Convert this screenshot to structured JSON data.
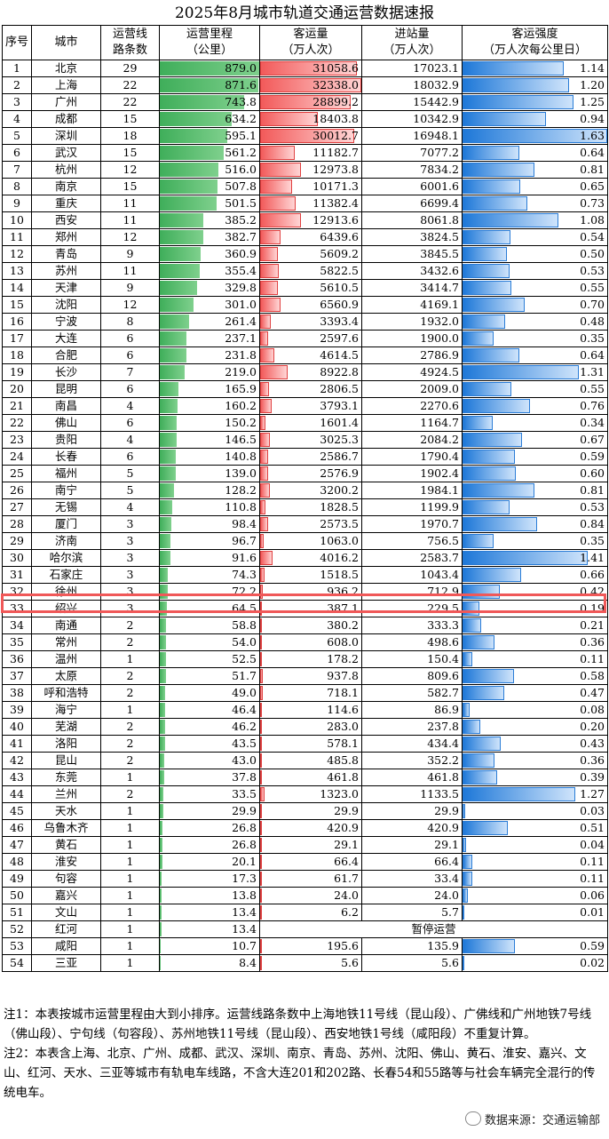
{
  "title": "2025年8月城市轨道交通运营数据速报",
  "headers": {
    "no": "序号",
    "city": "城市",
    "lines": [
      "运营线",
      "路条数"
    ],
    "mileage": [
      "运营里程",
      "（公里）"
    ],
    "ridership": [
      "客运量",
      "（万人次）"
    ],
    "entries": [
      "进站量",
      "（万人次）"
    ],
    "intensity": [
      "客运强度",
      "（万人次每公里日）"
    ]
  },
  "bar_colors": {
    "mileage": "#3fae5a",
    "ridership": "#f25a5a",
    "intensity": "#1e78d8"
  },
  "bar_scale": {
    "mileage_max": 879.0,
    "ridership_max": 32338.0,
    "intensity_max": 1.63
  },
  "rows": [
    {
      "no": "1",
      "city": "北京",
      "lines": "29",
      "mileage": "879.0",
      "ridership": "31058.6",
      "entries": "17023.1",
      "intensity": "1.14"
    },
    {
      "no": "2",
      "city": "上海",
      "lines": "22",
      "mileage": "871.6",
      "ridership": "32338.0",
      "entries": "18032.9",
      "intensity": "1.20"
    },
    {
      "no": "3",
      "city": "广州",
      "lines": "22",
      "mileage": "743.8",
      "ridership": "28899.2",
      "entries": "15442.9",
      "intensity": "1.25"
    },
    {
      "no": "4",
      "city": "成都",
      "lines": "15",
      "mileage": "634.2",
      "ridership": "18403.8",
      "entries": "10342.9",
      "intensity": "0.94"
    },
    {
      "no": "5",
      "city": "深圳",
      "lines": "18",
      "mileage": "595.1",
      "ridership": "30012.7",
      "entries": "16948.1",
      "intensity": "1.63"
    },
    {
      "no": "6",
      "city": "武汉",
      "lines": "15",
      "mileage": "561.2",
      "ridership": "11182.7",
      "entries": "7077.2",
      "intensity": "0.64"
    },
    {
      "no": "7",
      "city": "杭州",
      "lines": "12",
      "mileage": "516.0",
      "ridership": "12973.8",
      "entries": "7834.2",
      "intensity": "0.81"
    },
    {
      "no": "8",
      "city": "南京",
      "lines": "15",
      "mileage": "507.8",
      "ridership": "10171.3",
      "entries": "6001.6",
      "intensity": "0.65"
    },
    {
      "no": "9",
      "city": "重庆",
      "lines": "11",
      "mileage": "501.5",
      "ridership": "11382.4",
      "entries": "6699.4",
      "intensity": "0.73"
    },
    {
      "no": "10",
      "city": "西安",
      "lines": "11",
      "mileage": "385.2",
      "ridership": "12913.6",
      "entries": "8061.8",
      "intensity": "1.08"
    },
    {
      "no": "11",
      "city": "郑州",
      "lines": "12",
      "mileage": "382.7",
      "ridership": "6439.6",
      "entries": "3824.5",
      "intensity": "0.54"
    },
    {
      "no": "12",
      "city": "青岛",
      "lines": "9",
      "mileage": "360.9",
      "ridership": "5609.2",
      "entries": "3845.5",
      "intensity": "0.50"
    },
    {
      "no": "13",
      "city": "苏州",
      "lines": "11",
      "mileage": "355.4",
      "ridership": "5822.5",
      "entries": "3432.6",
      "intensity": "0.53"
    },
    {
      "no": "14",
      "city": "天津",
      "lines": "9",
      "mileage": "329.8",
      "ridership": "5610.5",
      "entries": "3414.7",
      "intensity": "0.55"
    },
    {
      "no": "15",
      "city": "沈阳",
      "lines": "12",
      "mileage": "301.0",
      "ridership": "6560.9",
      "entries": "4169.1",
      "intensity": "0.70"
    },
    {
      "no": "16",
      "city": "宁波",
      "lines": "8",
      "mileage": "261.4",
      "ridership": "3393.4",
      "entries": "1932.0",
      "intensity": "0.48"
    },
    {
      "no": "17",
      "city": "大连",
      "lines": "6",
      "mileage": "237.1",
      "ridership": "2597.6",
      "entries": "1900.0",
      "intensity": "0.35"
    },
    {
      "no": "18",
      "city": "合肥",
      "lines": "6",
      "mileage": "231.8",
      "ridership": "4614.5",
      "entries": "2786.9",
      "intensity": "0.64"
    },
    {
      "no": "19",
      "city": "长沙",
      "lines": "7",
      "mileage": "219.0",
      "ridership": "8922.8",
      "entries": "4924.5",
      "intensity": "1.31"
    },
    {
      "no": "20",
      "city": "昆明",
      "lines": "6",
      "mileage": "165.9",
      "ridership": "2806.5",
      "entries": "2009.0",
      "intensity": "0.55"
    },
    {
      "no": "21",
      "city": "南昌",
      "lines": "4",
      "mileage": "160.2",
      "ridership": "3793.1",
      "entries": "2270.6",
      "intensity": "0.76"
    },
    {
      "no": "22",
      "city": "佛山",
      "lines": "6",
      "mileage": "150.2",
      "ridership": "1601.4",
      "entries": "1164.7",
      "intensity": "0.34"
    },
    {
      "no": "23",
      "city": "贵阳",
      "lines": "4",
      "mileage": "146.5",
      "ridership": "3025.3",
      "entries": "2084.2",
      "intensity": "0.67"
    },
    {
      "no": "24",
      "city": "长春",
      "lines": "6",
      "mileage": "140.8",
      "ridership": "2586.7",
      "entries": "1790.4",
      "intensity": "0.59"
    },
    {
      "no": "25",
      "city": "福州",
      "lines": "5",
      "mileage": "139.0",
      "ridership": "2576.9",
      "entries": "1902.4",
      "intensity": "0.60"
    },
    {
      "no": "26",
      "city": "南宁",
      "lines": "5",
      "mileage": "128.2",
      "ridership": "3200.2",
      "entries": "1984.1",
      "intensity": "0.81"
    },
    {
      "no": "27",
      "city": "无锡",
      "lines": "4",
      "mileage": "110.8",
      "ridership": "1828.5",
      "entries": "1199.9",
      "intensity": "0.53"
    },
    {
      "no": "28",
      "city": "厦门",
      "lines": "3",
      "mileage": "98.4",
      "ridership": "2573.5",
      "entries": "1970.7",
      "intensity": "0.84"
    },
    {
      "no": "29",
      "city": "济南",
      "lines": "3",
      "mileage": "96.7",
      "ridership": "1063.0",
      "entries": "756.5",
      "intensity": "0.35"
    },
    {
      "no": "30",
      "city": "哈尔滨",
      "lines": "3",
      "mileage": "91.6",
      "ridership": "4016.2",
      "entries": "2583.7",
      "intensity": "1.41"
    },
    {
      "no": "31",
      "city": "石家庄",
      "lines": "3",
      "mileage": "74.3",
      "ridership": "1518.5",
      "entries": "1043.4",
      "intensity": "0.66"
    },
    {
      "no": "32",
      "city": "徐州",
      "lines": "3",
      "mileage": "72.2",
      "ridership": "936.2",
      "entries": "712.9",
      "intensity": "0.42"
    },
    {
      "no": "33",
      "city": "绍兴",
      "lines": "3",
      "mileage": "64.5",
      "ridership": "387.1",
      "entries": "229.5",
      "intensity": "0.19"
    },
    {
      "no": "34",
      "city": "南通",
      "lines": "2",
      "mileage": "58.8",
      "ridership": "380.2",
      "entries": "333.3",
      "intensity": "0.21"
    },
    {
      "no": "35",
      "city": "常州",
      "lines": "2",
      "mileage": "54.0",
      "ridership": "608.0",
      "entries": "498.6",
      "intensity": "0.36"
    },
    {
      "no": "36",
      "city": "温州",
      "lines": "1",
      "mileage": "52.5",
      "ridership": "178.2",
      "entries": "150.4",
      "intensity": "0.11"
    },
    {
      "no": "37",
      "city": "太原",
      "lines": "2",
      "mileage": "51.7",
      "ridership": "937.8",
      "entries": "809.6",
      "intensity": "0.58"
    },
    {
      "no": "38",
      "city": "呼和浩特",
      "lines": "2",
      "mileage": "49.0",
      "ridership": "718.1",
      "entries": "582.7",
      "intensity": "0.47"
    },
    {
      "no": "39",
      "city": "海宁",
      "lines": "1",
      "mileage": "46.4",
      "ridership": "114.6",
      "entries": "86.9",
      "intensity": "0.08"
    },
    {
      "no": "40",
      "city": "芜湖",
      "lines": "2",
      "mileage": "46.2",
      "ridership": "283.0",
      "entries": "237.8",
      "intensity": "0.20"
    },
    {
      "no": "41",
      "city": "洛阳",
      "lines": "2",
      "mileage": "43.5",
      "ridership": "578.1",
      "entries": "434.4",
      "intensity": "0.43"
    },
    {
      "no": "42",
      "city": "昆山",
      "lines": "2",
      "mileage": "43.0",
      "ridership": "485.8",
      "entries": "352.2",
      "intensity": "0.36"
    },
    {
      "no": "43",
      "city": "东莞",
      "lines": "1",
      "mileage": "37.8",
      "ridership": "461.8",
      "entries": "461.8",
      "intensity": "0.39"
    },
    {
      "no": "44",
      "city": "兰州",
      "lines": "2",
      "mileage": "33.5",
      "ridership": "1323.0",
      "entries": "1133.5",
      "intensity": "1.27"
    },
    {
      "no": "45",
      "city": "天水",
      "lines": "1",
      "mileage": "29.9",
      "ridership": "29.9",
      "entries": "29.9",
      "intensity": "0.03"
    },
    {
      "no": "46",
      "city": "乌鲁木齐",
      "lines": "1",
      "mileage": "26.8",
      "ridership": "420.9",
      "entries": "420.9",
      "intensity": "0.51"
    },
    {
      "no": "47",
      "city": "黄石",
      "lines": "1",
      "mileage": "26.8",
      "ridership": "29.1",
      "entries": "29.1",
      "intensity": "0.04"
    },
    {
      "no": "48",
      "city": "淮安",
      "lines": "1",
      "mileage": "20.1",
      "ridership": "66.4",
      "entries": "66.4",
      "intensity": "0.11"
    },
    {
      "no": "49",
      "city": "句容",
      "lines": "1",
      "mileage": "17.3",
      "ridership": "61.7",
      "entries": "33.4",
      "intensity": "0.11"
    },
    {
      "no": "50",
      "city": "嘉兴",
      "lines": "1",
      "mileage": "13.8",
      "ridership": "24.0",
      "entries": "24.0",
      "intensity": "0.06"
    },
    {
      "no": "51",
      "city": "文山",
      "lines": "1",
      "mileage": "13.4",
      "ridership": "6.2",
      "entries": "5.7",
      "intensity": "0.01"
    },
    {
      "no": "52",
      "city": "红河",
      "lines": "1",
      "mileage": "13.4",
      "suspended": "暂停运营"
    },
    {
      "no": "53",
      "city": "咸阳",
      "lines": "1",
      "mileage": "10.7",
      "ridership": "195.6",
      "entries": "135.9",
      "intensity": "0.59"
    },
    {
      "no": "54",
      "city": "三亚",
      "lines": "1",
      "mileage": "8.4",
      "ridership": "5.6",
      "entries": "5.6",
      "intensity": "0.02"
    }
  ],
  "highlighted_row": "32",
  "notes": [
    "注1：本表按城市运营里程由大到小排序。运营线路条数中上海地铁11号线（昆山段）、广佛线和广州地铁7号线（佛山段）、宁句线（句容段）、苏州地铁11号线（昆山段）、西安地铁1号线（咸阳段）不重复计算。",
    "注2：本表含上海、北京、广州、成都、武汉、深圳、南京、青岛、苏州、沈阳、佛山、黄石、淮安、嘉兴、文山、红河、天水、三亚等城市有轨电车线路，不含大连201和202路、长春54和55路等与社会车辆完全混行的传统电车。"
  ],
  "source": "数据来源：交通运输部"
}
